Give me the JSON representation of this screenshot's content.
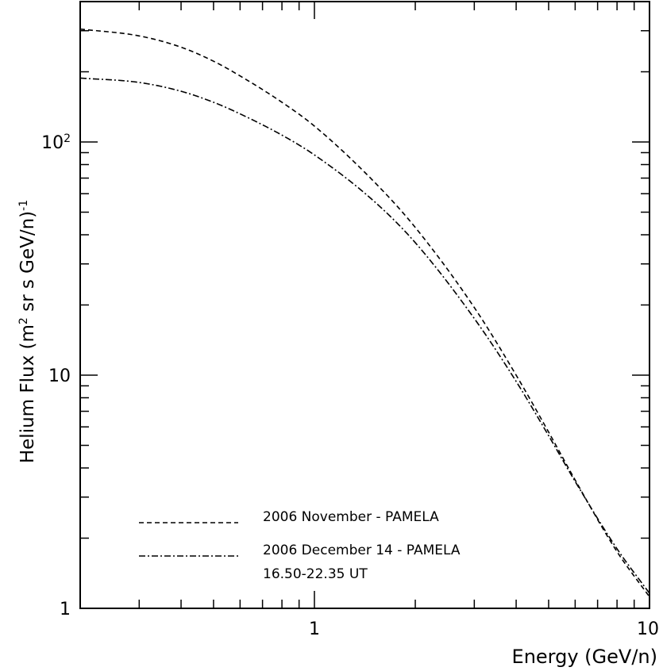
{
  "chart_data": {
    "type": "line",
    "xlabel": "Energy (GeV/n)",
    "ylabel_main": "Helium Flux (m",
    "ylabel_sup": "2",
    "ylabel_rest": " sr s GeV/n)",
    "ylabel_exp": "-1",
    "x_scale": "log",
    "y_scale": "log",
    "xlim": [
      0.2,
      10
    ],
    "ylim": [
      1,
      400
    ],
    "x_ticks": [
      {
        "value": 1,
        "label": "1"
      },
      {
        "value": 10,
        "label": "10"
      }
    ],
    "y_ticks": [
      {
        "value": 1,
        "label": "1"
      },
      {
        "value": 10,
        "label": "10"
      },
      {
        "value": 100,
        "label": "10",
        "exp": "2"
      }
    ],
    "grid": false,
    "legend_position": "bottom-left",
    "series": [
      {
        "name": "2006 November - PAMELA",
        "line_style": "dashed",
        "color": "#000000",
        "x": [
          0.2,
          0.3,
          0.4,
          0.5,
          0.6,
          0.8,
          1.0,
          1.5,
          2.0,
          3.0,
          4.0,
          5.0,
          6.0,
          8.0,
          10.0
        ],
        "y": [
          305,
          285,
          255,
          222,
          192,
          148,
          117,
          68,
          43,
          19.5,
          10.0,
          5.7,
          3.55,
          1.75,
          1.12
        ]
      },
      {
        "name": "2006 December 14 - PAMELA",
        "name_line2": "16.50-22.35 UT",
        "line_style": "dash-dot",
        "color": "#000000",
        "x": [
          0.2,
          0.3,
          0.4,
          0.5,
          0.6,
          0.8,
          1.0,
          1.5,
          2.0,
          3.0,
          4.0,
          5.0,
          6.0,
          8.0,
          10.0
        ],
        "y": [
          188,
          180,
          165,
          148,
          132,
          107,
          88,
          56,
          37,
          17.5,
          9.4,
          5.5,
          3.5,
          1.8,
          1.16
        ]
      }
    ]
  }
}
